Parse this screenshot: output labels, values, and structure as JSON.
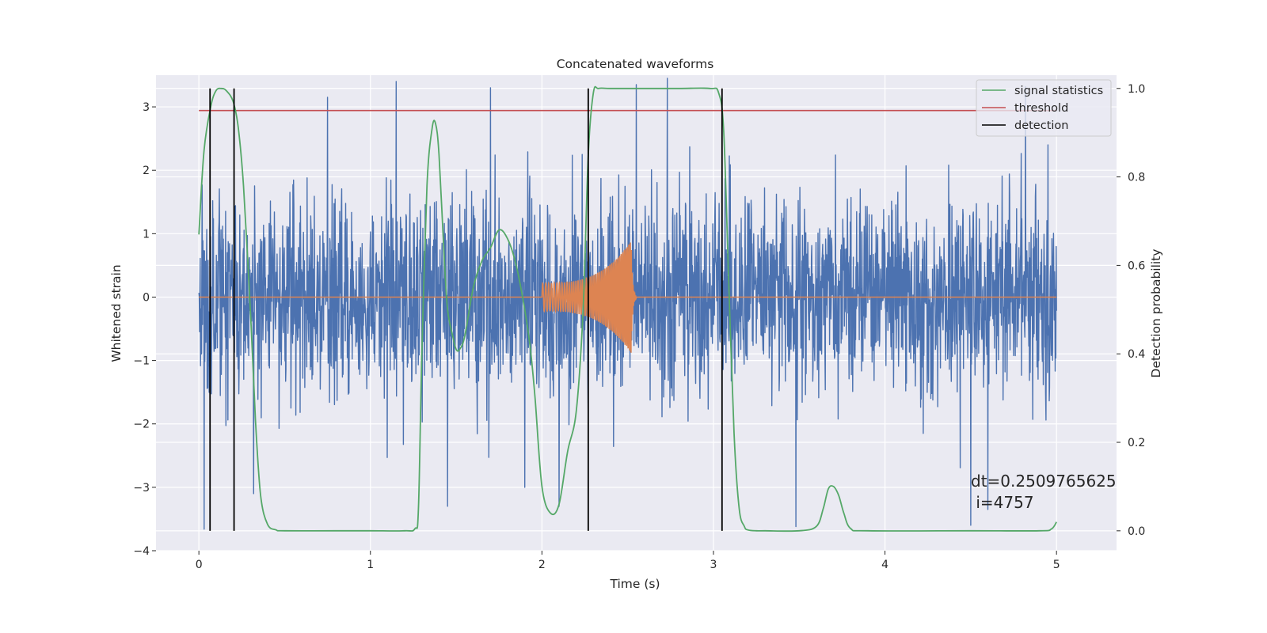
{
  "chart_data": {
    "type": "line",
    "title": "Concatenated waveforms",
    "xlabel": "Time (s)",
    "ylabel": "Whitened strain",
    "y2label": "Detection probability",
    "xlim": [
      -0.25,
      5.35
    ],
    "ylim": [
      -4.0,
      3.5
    ],
    "y2lim": [
      -0.045,
      1.03
    ],
    "xticks": [
      0,
      1,
      2,
      3,
      4,
      5
    ],
    "yticks": [
      -4,
      -3,
      -2,
      -1,
      0,
      1,
      2,
      3
    ],
    "y2ticks": [
      0.0,
      0.2,
      0.4,
      0.6,
      0.8,
      1.0
    ],
    "xtick_labels": [
      "0",
      "1",
      "2",
      "3",
      "4",
      "5"
    ],
    "ytick_labels": [
      "−4",
      "−3",
      "−2",
      "−1",
      "0",
      "1",
      "2",
      "3"
    ],
    "y2tick_labels": [
      "0.0",
      "0.2",
      "0.4",
      "0.6",
      "0.8",
      "1.0"
    ],
    "grid": true,
    "legend_position": "top-right",
    "colors": {
      "noise": "#4c72b0",
      "waveform": "#dd8452",
      "statistics": "#55a868",
      "threshold": "#c44e52",
      "detection": "#000000",
      "plot_bg": "#eaeaf2",
      "grid": "#ffffff"
    },
    "series": [
      {
        "key": "noise",
        "axis": "left",
        "description": "whitened strain noise, approx. Gaussian, std ~0.75, min ~-3.65, max ~3.45",
        "x_range": [
          0,
          5
        ],
        "std": 0.75,
        "spikes": [
          {
            "x": 0.03,
            "y": -3.66
          },
          {
            "x": 0.32,
            "y": -3.1
          },
          {
            "x": 0.75,
            "y": 3.15
          },
          {
            "x": 1.15,
            "y": 3.4
          },
          {
            "x": 1.45,
            "y": -3.3
          },
          {
            "x": 1.7,
            "y": 3.3
          },
          {
            "x": 1.9,
            "y": -3.0
          },
          {
            "x": 2.1,
            "y": -3.3
          },
          {
            "x": 2.55,
            "y": 3.35
          },
          {
            "x": 2.73,
            "y": 3.45
          },
          {
            "x": 3.48,
            "y": -3.62
          },
          {
            "x": 4.5,
            "y": -3.6
          },
          {
            "x": 4.6,
            "y": -3.35
          },
          {
            "x": 4.82,
            "y": 3.32
          },
          {
            "x": 4.95,
            "y": 2.4
          }
        ]
      },
      {
        "key": "waveform",
        "axis": "left",
        "description": "injected chirp signal",
        "x_start": 2.0,
        "x_peak": 2.52,
        "x_end": 2.55,
        "amplitude_start": 0.22,
        "amplitude_peak": 0.88,
        "amplitude_peak_min": -0.68
      },
      {
        "name": "signal statistics",
        "key": "statistics",
        "axis": "right",
        "x": [
          0,
          0.03,
          0.07,
          0.1,
          0.13,
          0.16,
          0.2,
          0.23,
          0.26,
          0.3,
          0.33,
          0.36,
          0.4,
          0.45,
          0.5,
          0.8,
          1.0,
          1.2,
          1.26,
          1.28,
          1.3,
          1.33,
          1.36,
          1.38,
          1.4,
          1.43,
          1.45,
          1.48,
          1.5,
          1.52,
          1.55,
          1.6,
          1.65,
          1.7,
          1.75,
          1.8,
          1.85,
          1.9,
          1.93,
          1.96,
          2.0,
          2.05,
          2.1,
          2.15,
          2.2,
          2.24,
          2.27,
          2.3,
          2.33,
          2.4,
          2.6,
          2.8,
          2.98,
          3.03,
          3.06,
          3.09,
          3.12,
          3.15,
          3.18,
          3.2,
          3.25,
          3.3,
          3.5,
          3.6,
          3.64,
          3.67,
          3.7,
          3.73,
          3.76,
          3.8,
          3.9,
          4.5,
          4.9,
          4.97,
          5.0
        ],
        "y": [
          0.67,
          0.86,
          0.96,
          0.995,
          1.0,
          0.995,
          0.97,
          0.91,
          0.78,
          0.5,
          0.25,
          0.08,
          0.015,
          0.002,
          0.0,
          0.0,
          0.0,
          0.0,
          0.005,
          0.05,
          0.4,
          0.78,
          0.91,
          0.92,
          0.85,
          0.62,
          0.5,
          0.44,
          0.41,
          0.41,
          0.44,
          0.55,
          0.61,
          0.64,
          0.68,
          0.66,
          0.6,
          0.5,
          0.42,
          0.3,
          0.1,
          0.04,
          0.06,
          0.18,
          0.27,
          0.5,
          0.85,
          0.99,
          1.0,
          1.0,
          1.0,
          1.0,
          1.0,
          0.99,
          0.9,
          0.55,
          0.22,
          0.05,
          0.01,
          0.002,
          0.0,
          0.0,
          0.0,
          0.01,
          0.05,
          0.095,
          0.1,
          0.08,
          0.04,
          0.005,
          0.0,
          0.0,
          0.0,
          0.004,
          0.02
        ]
      },
      {
        "name": "threshold",
        "key": "threshold",
        "axis": "right",
        "value": 0.95,
        "x_range": [
          0,
          5
        ]
      },
      {
        "name": "detection",
        "key": "detection",
        "axis": "right",
        "x": [
          0.065,
          0.205,
          2.27,
          3.05
        ],
        "y_range": [
          0.0,
          1.0
        ]
      }
    ],
    "annotation": "dt=0.2509765625\n i=4757",
    "annotation_lines": [
      "dt=0.2509765625",
      " i=4757"
    ],
    "annotation_position": [
      4.5,
      -3.3
    ]
  }
}
